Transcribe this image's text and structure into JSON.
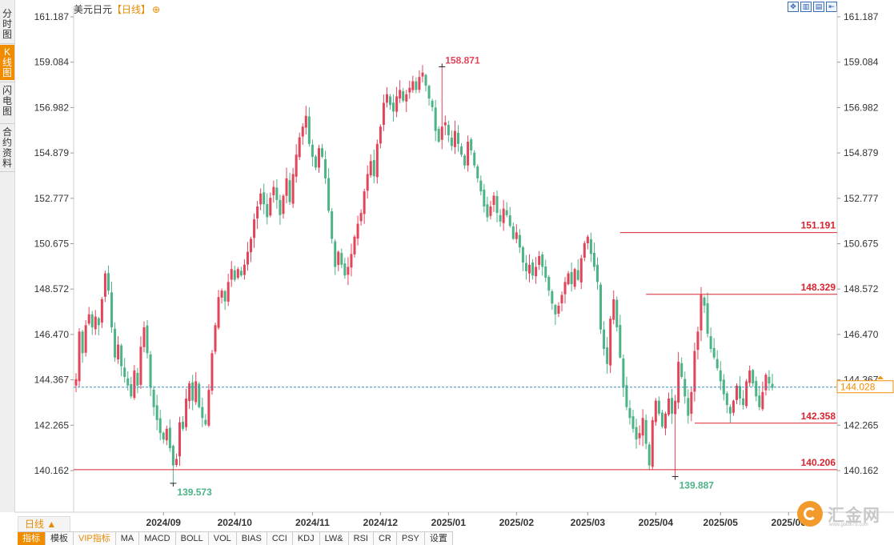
{
  "window": {
    "title": "美元日元",
    "period_label": "【日线】",
    "zoom_icon": "zoom-in-icon"
  },
  "tabs": [
    {
      "label": "分时图",
      "active": false
    },
    {
      "label": "K线图",
      "active": true
    },
    {
      "label": "闪电图",
      "active": false
    },
    {
      "label": "合约资料",
      "active": false
    }
  ],
  "toolbar_icons": [
    "move-icon",
    "zoom-in-icon",
    "zoom-out-icon",
    "reset-icon"
  ],
  "period_selector": {
    "label": "日线 ▲"
  },
  "bottom_menu": [
    {
      "label": "指标",
      "active": true,
      "vip": false
    },
    {
      "label": "模板",
      "active": false,
      "vip": false
    },
    {
      "label": "VIP指标",
      "active": false,
      "vip": true
    },
    {
      "label": "MA",
      "active": false,
      "vip": false
    },
    {
      "label": "MACD",
      "active": false,
      "vip": false
    },
    {
      "label": "BOLL",
      "active": false,
      "vip": false
    },
    {
      "label": "VOL",
      "active": false,
      "vip": false
    },
    {
      "label": "BIAS",
      "active": false,
      "vip": false
    },
    {
      "label": "CCI",
      "active": false,
      "vip": false
    },
    {
      "label": "KDJ",
      "active": false,
      "vip": false
    },
    {
      "label": "LW&",
      "active": false,
      "vip": false
    },
    {
      "label": "RSI",
      "active": false,
      "vip": false
    },
    {
      "label": "CR",
      "active": false,
      "vip": false
    },
    {
      "label": "PSY",
      "active": false,
      "vip": false
    },
    {
      "label": "设置",
      "active": false,
      "vip": false
    }
  ],
  "brand": {
    "name": "汇金网",
    "url": "www.gold678.com"
  },
  "colors": {
    "up": "#e2455a",
    "down": "#4cb386",
    "level_line": "#d9242f",
    "current_line": "#3a8fb7",
    "accent": "#f08c00"
  },
  "chart_data": {
    "type": "candlestick",
    "title": "美元日元",
    "period": "日线",
    "y_ticks": [
      "161.187",
      "159.084",
      "156.982",
      "154.879",
      "152.777",
      "150.675",
      "148.572",
      "146.470",
      "144.367",
      "142.265",
      "140.162"
    ],
    "ylim": [
      140.162,
      161.187
    ],
    "x_ticks": [
      "2024/09",
      "2024/10",
      "2024/11",
      "2024/12",
      "2025/01",
      "2025/02",
      "2025/03",
      "2025/04",
      "2025/05",
      "2025/06"
    ],
    "x_tick_index": [
      27,
      49,
      73,
      94,
      115,
      136,
      158,
      179,
      199,
      220
    ],
    "current_price": 144.028,
    "annotations": [
      {
        "label": "158.871",
        "value": 158.871,
        "index": 113,
        "kind": "high"
      },
      {
        "label": "139.573",
        "value": 139.573,
        "index": 30,
        "kind": "low"
      },
      {
        "label": "139.887",
        "value": 139.887,
        "index": 185,
        "kind": "low"
      }
    ],
    "levels": [
      {
        "label": "151.191",
        "value": 151.191,
        "start_index": 168
      },
      {
        "label": "148.329",
        "value": 148.329,
        "start_index": 176
      },
      {
        "label": "142.358",
        "value": 142.358,
        "start_index": 191
      },
      {
        "label": "140.206",
        "value": 140.206,
        "start_index": 0
      }
    ],
    "closes": [
      144.4,
      146.6,
      145.6,
      146.9,
      147.4,
      146.8,
      147.3,
      146.9,
      148.1,
      149.3,
      148.5,
      146.8,
      145.4,
      146.0,
      145.0,
      144.5,
      144.1,
      143.6,
      144.8,
      144.1,
      145.9,
      146.8,
      145.6,
      144.0,
      143.1,
      142.5,
      141.9,
      141.6,
      142.1,
      141.2,
      140.4,
      140.7,
      142.4,
      142.1,
      143.5,
      144.2,
      143.4,
      144.3,
      143.1,
      142.6,
      142.3,
      143.9,
      145.6,
      146.9,
      148.2,
      148.5,
      148.0,
      148.9,
      149.5,
      149.0,
      149.5,
      149.2,
      149.7,
      150.3,
      150.9,
      151.8,
      152.4,
      153.0,
      152.5,
      151.9,
      152.8,
      153.3,
      152.7,
      152.0,
      152.9,
      153.7,
      152.6,
      153.9,
      154.8,
      155.6,
      156.1,
      156.6,
      155.3,
      154.7,
      154.2,
      155.1,
      154.7,
      153.7,
      152.2,
      150.9,
      149.6,
      150.3,
      149.7,
      149.2,
      149.6,
      150.2,
      151.0,
      151.6,
      152.1,
      153.1,
      153.9,
      154.5,
      153.8,
      155.3,
      156.1,
      157.2,
      157.6,
      157.1,
      156.8,
      157.5,
      157.8,
      157.3,
      157.6,
      157.9,
      158.2,
      157.8,
      158.4,
      158.6,
      158.0,
      157.4,
      157.0,
      155.9,
      155.4,
      156.1,
      156.3,
      155.7,
      155.2,
      155.9,
      155.3,
      154.8,
      154.3,
      155.4,
      155.0,
      154.3,
      153.7,
      153.1,
      152.4,
      151.9,
      152.4,
      152.9,
      152.1,
      151.7,
      152.3,
      152.0,
      151.5,
      150.9,
      151.2,
      150.5,
      149.8,
      149.4,
      149.7,
      149.2,
      149.6,
      150.1,
      149.6,
      149.1,
      148.5,
      147.9,
      147.4,
      147.8,
      148.3,
      148.9,
      149.3,
      148.8,
      149.5,
      149.0,
      150.0,
      150.7,
      151.0,
      150.2,
      149.6,
      148.9,
      146.7,
      145.8,
      145.1,
      147.2,
      148.1,
      146.8,
      145.4,
      144.0,
      143.1,
      142.6,
      142.1,
      141.6,
      141.9,
      142.6,
      141.4,
      140.4,
      142.5,
      143.4,
      142.8,
      142.2,
      142.8,
      143.5,
      142.8,
      143.4,
      145.2,
      144.5,
      143.6,
      142.7,
      143.8,
      145.7,
      146.6,
      148.3,
      147.8,
      146.5,
      145.8,
      145.4,
      144.9,
      144.3,
      143.7,
      143.2,
      142.8,
      143.4,
      144.1,
      143.5,
      143.2,
      144.3,
      144.8,
      144.2,
      143.6,
      143.1,
      143.8,
      144.6,
      144.2,
      144.0
    ]
  }
}
